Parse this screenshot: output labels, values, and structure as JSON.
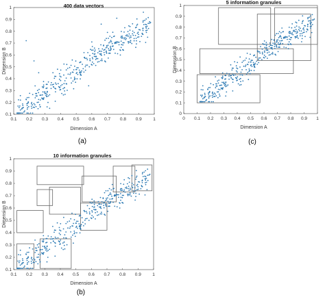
{
  "chart_data": [
    {
      "type": "scatter",
      "title": "400 data vectors",
      "xlabel": "Dimension A",
      "ylabel": "Dimension B",
      "xlim": [
        0.1,
        1
      ],
      "ylim": [
        0.1,
        1
      ],
      "xticks": [
        "0.1",
        "0.2",
        "0.3",
        "0.4",
        "0.5",
        "0.6",
        "0.7",
        "0.8",
        "0.9",
        "1"
      ],
      "yticks": [
        "0.1",
        "0.2",
        "0.3",
        "0.4",
        "0.5",
        "0.6",
        "0.7",
        "0.8",
        "0.9",
        "1"
      ],
      "point_color": "#2e7bb4",
      "points": [
        [
          0.18,
          0.72
        ],
        [
          0.23,
          0.55
        ],
        [
          0.26,
          0.45
        ],
        [
          0.31,
          0.25
        ],
        [
          0.33,
          0.15
        ],
        [
          0.41,
          0.35
        ],
        [
          0.44,
          0.52
        ],
        [
          0.49,
          0.4
        ],
        [
          0.55,
          0.62
        ],
        [
          0.6,
          0.71
        ],
        [
          0.66,
          0.86
        ],
        [
          0.7,
          0.79
        ],
        [
          0.76,
          0.91
        ],
        [
          0.82,
          0.74
        ],
        [
          0.88,
          0.83
        ],
        [
          0.93,
          0.96
        ],
        [
          0.97,
          0.88
        ],
        [
          0.58,
          0.34
        ],
        [
          0.63,
          0.57
        ],
        [
          0.72,
          0.66
        ]
      ],
      "caption": "(a)"
    },
    {
      "type": "scatter",
      "title": "10 information granules",
      "xlabel": "Dimension A",
      "ylabel": "Dimension B",
      "xlim": [
        0.1,
        1
      ],
      "ylim": [
        0.1,
        1
      ],
      "xticks": [
        "0.1",
        "0.2",
        "0.3",
        "0.4",
        "0.5",
        "0.6",
        "0.7",
        "0.8",
        "0.9",
        "1"
      ],
      "yticks": [
        "0.1",
        "0.2",
        "0.3",
        "0.4",
        "0.5",
        "0.6",
        "0.7",
        "0.8",
        "0.9",
        "1"
      ],
      "point_color": "#2e7bb4",
      "granules": [
        {
          "x": [
            0.25,
            0.55
          ],
          "y": [
            0.79,
            0.94
          ]
        },
        {
          "x": [
            0.25,
            0.35
          ],
          "y": [
            0.62,
            0.75
          ]
        },
        {
          "x": [
            0.33,
            0.53
          ],
          "y": [
            0.55,
            0.77
          ]
        },
        {
          "x": [
            0.12,
            0.29
          ],
          "y": [
            0.4,
            0.58
          ]
        },
        {
          "x": [
            0.12,
            0.23
          ],
          "y": [
            0.11,
            0.31
          ]
        },
        {
          "x": [
            0.27,
            0.47
          ],
          "y": [
            0.11,
            0.35
          ]
        },
        {
          "x": [
            0.53,
            0.7
          ],
          "y": [
            0.42,
            0.64
          ]
        },
        {
          "x": [
            0.54,
            0.76
          ],
          "y": [
            0.65,
            0.86
          ]
        },
        {
          "x": [
            0.74,
            0.88
          ],
          "y": [
            0.73,
            0.94
          ]
        },
        {
          "x": [
            0.86,
            0.99
          ],
          "y": [
            0.74,
            0.95
          ]
        }
      ],
      "caption": "(b)"
    },
    {
      "type": "scatter",
      "title": "5 information granules",
      "xlabel": "Dimension A",
      "ylabel": "Dimension B",
      "xlim": [
        0,
        1
      ],
      "ylim": [
        0,
        1
      ],
      "xticks": [
        "0",
        "0.1",
        "0.2",
        "0.3",
        "0.4",
        "0.5",
        "0.6",
        "0.7",
        "0.8",
        "0.9",
        "1"
      ],
      "yticks": [
        "0",
        "0.1",
        "0.2",
        "0.3",
        "0.4",
        "0.5",
        "0.6",
        "0.7",
        "0.8",
        "0.9",
        "1"
      ],
      "point_color": "#2e7bb4",
      "granules": [
        {
          "x": [
            0.26,
            0.65
          ],
          "y": [
            0.64,
            0.98
          ]
        },
        {
          "x": [
            0.55,
            0.95
          ],
          "y": [
            0.49,
            0.92
          ]
        },
        {
          "x": [
            0.68,
            1.0
          ],
          "y": [
            0.64,
            0.98
          ]
        },
        {
          "x": [
            0.12,
            0.82
          ],
          "y": [
            0.37,
            0.6
          ]
        },
        {
          "x": [
            0.1,
            0.57
          ],
          "y": [
            0.1,
            0.36
          ]
        }
      ],
      "caption": "(c)"
    }
  ]
}
